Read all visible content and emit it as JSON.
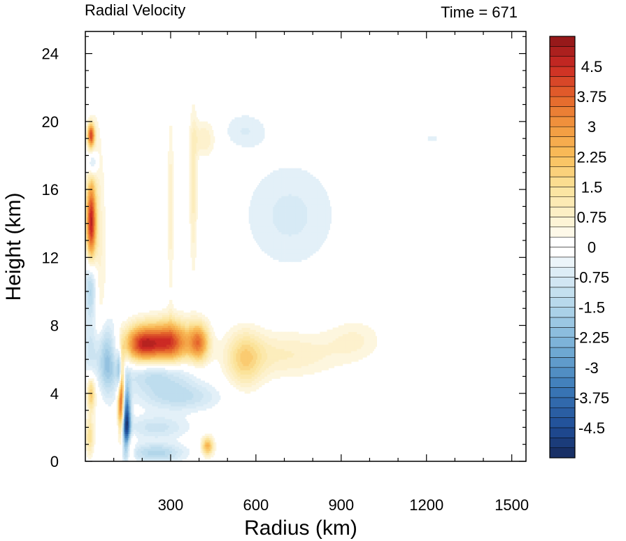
{
  "chart_data": {
    "type": "heatmap",
    "title_left": "Radial Velocity",
    "title_right": "Time = 671",
    "xlabel": "Radius (km)",
    "ylabel": "Height (km)",
    "xlim": [
      0,
      1550
    ],
    "ylim": [
      0,
      25.3
    ],
    "x_ticks": [
      300,
      600,
      900,
      1200,
      1500
    ],
    "y_ticks": [
      0,
      4,
      8,
      12,
      16,
      20,
      24
    ],
    "colorbar": {
      "min": -5.25,
      "max": 5.25,
      "step": 0.25,
      "labels": [
        "4.5",
        "3.75",
        "3",
        "2.25",
        "1.5",
        "0.75",
        "0",
        "-0.75",
        "-1.5",
        "-2.25",
        "-3",
        "-3.75",
        "-4.5"
      ],
      "color_stops": [
        {
          "v": -5.25,
          "c": "#172a5c"
        },
        {
          "v": -4.5,
          "c": "#1f4d97"
        },
        {
          "v": -3.5,
          "c": "#3c7ab8"
        },
        {
          "v": -2.5,
          "c": "#75aed6"
        },
        {
          "v": -1.5,
          "c": "#b2d6ea"
        },
        {
          "v": -0.5,
          "c": "#e3f0f8"
        },
        {
          "v": -0.125,
          "c": "#ffffff"
        },
        {
          "v": 0.125,
          "c": "#ffffff"
        },
        {
          "v": 0.5,
          "c": "#fdf6de"
        },
        {
          "v": 1.5,
          "c": "#fbe39a"
        },
        {
          "v": 2.25,
          "c": "#f9bf5c"
        },
        {
          "v": 3.0,
          "c": "#f2993f"
        },
        {
          "v": 3.75,
          "c": "#e4642b"
        },
        {
          "v": 4.5,
          "c": "#cc2a24"
        },
        {
          "v": 5.25,
          "c": "#8c1518"
        }
      ]
    },
    "features": [
      {
        "r": 20,
        "z": 14,
        "sr": 12,
        "sz": 1.8,
        "v": 4.5
      },
      {
        "r": 20,
        "z": 19.2,
        "sr": 9,
        "sz": 0.5,
        "v": 4.0
      },
      {
        "r": 25,
        "z": 17.5,
        "sr": 12,
        "sz": 0.5,
        "v": -1.5
      },
      {
        "r": 20,
        "z": 10.5,
        "sr": 15,
        "sz": 1.5,
        "v": -2.2
      },
      {
        "r": 45,
        "z": 12,
        "sr": 20,
        "sz": 6,
        "v": 0.8
      },
      {
        "r": 20,
        "z": 6.5,
        "sr": 20,
        "sz": 1.2,
        "v": -1.0
      },
      {
        "r": 20,
        "z": 4.0,
        "sr": 10,
        "sz": 0.7,
        "v": 2.0
      },
      {
        "r": 15,
        "z": 1.5,
        "sr": 10,
        "sz": 0.8,
        "v": 1.5
      },
      {
        "r": 75,
        "z": 6.0,
        "sr": 25,
        "sz": 1.5,
        "v": -2.0
      },
      {
        "r": 125,
        "z": 4.0,
        "sr": 8,
        "sz": 1.5,
        "v": 5.0
      },
      {
        "r": 120,
        "z": 5.2,
        "sr": 6,
        "sz": 1.0,
        "v": -3.5
      },
      {
        "r": 145,
        "z": 2.0,
        "sr": 10,
        "sz": 1.5,
        "v": -5.0
      },
      {
        "r": 150,
        "z": 0.7,
        "sr": 12,
        "sz": 0.7,
        "v": 2.5
      },
      {
        "r": 200,
        "z": 6.9,
        "sr": 45,
        "sz": 0.8,
        "v": 4.2
      },
      {
        "r": 300,
        "z": 7.0,
        "sr": 50,
        "sz": 0.9,
        "v": 4.0
      },
      {
        "r": 400,
        "z": 7.0,
        "sr": 25,
        "sz": 0.8,
        "v": 3.0
      },
      {
        "r": 250,
        "z": 5.2,
        "sr": 90,
        "sz": 0.7,
        "v": -1.5
      },
      {
        "r": 330,
        "z": 3.8,
        "sr": 100,
        "sz": 0.6,
        "v": -1.2
      },
      {
        "r": 250,
        "z": 2.0,
        "sr": 80,
        "sz": 0.5,
        "v": -1.0
      },
      {
        "r": 250,
        "z": 0.5,
        "sr": 70,
        "sz": 0.4,
        "v": -1.5
      },
      {
        "r": 430,
        "z": 0.9,
        "sr": 15,
        "sz": 0.4,
        "v": 2.5
      },
      {
        "r": 560,
        "z": 6.0,
        "sr": 45,
        "sz": 1.2,
        "v": 1.5
      },
      {
        "r": 700,
        "z": 6.3,
        "sr": 140,
        "sz": 1.0,
        "v": 0.9
      },
      {
        "r": 950,
        "z": 7.2,
        "sr": 70,
        "sz": 0.9,
        "v": 0.6
      },
      {
        "r": 720,
        "z": 14.5,
        "sr": 130,
        "sz": 2.5,
        "v": -0.7
      },
      {
        "r": 560,
        "z": 19.5,
        "sr": 60,
        "sz": 0.8,
        "v": -0.6
      },
      {
        "r": 1220,
        "z": 19.0,
        "sr": 50,
        "sz": 0.4,
        "v": -0.4
      },
      {
        "r": 380,
        "z": 16.0,
        "sr": 10,
        "sz": 3.5,
        "v": 1.0
      },
      {
        "r": 300,
        "z": 15.0,
        "sr": 8,
        "sz": 4.0,
        "v": 0.8
      },
      {
        "r": 420,
        "z": 19.0,
        "sr": 30,
        "sz": 0.8,
        "v": 0.9
      }
    ]
  }
}
